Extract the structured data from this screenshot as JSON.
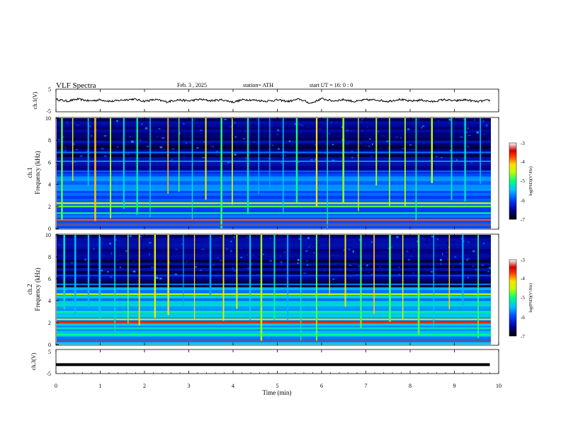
{
  "header": {
    "title": "VLF Spectra",
    "date": "Feb. 3 , 2025",
    "station": "station= ATH",
    "start": "start UT = 16: 0 : 0"
  },
  "colors": {
    "trace": "#000000",
    "frame": "#000000",
    "background": "#ffffff"
  },
  "chart_data": [
    {
      "type": "line",
      "name": "ch1-voltage",
      "ylabel": "ch.1(V)",
      "ylim": [
        -5,
        5
      ],
      "yticks": [
        "5",
        "-5"
      ],
      "x": [
        0,
        0.25,
        0.5,
        0.75,
        1,
        1.25,
        1.5,
        1.75,
        2,
        2.25,
        2.5,
        2.75,
        3,
        3.25,
        3.5,
        3.75,
        4,
        4.25,
        4.5,
        4.75,
        5,
        5.25,
        5.5,
        5.75,
        6,
        6.25,
        6.5,
        6.75,
        7,
        7.25,
        7.5,
        7.75,
        8,
        8.25,
        8.5,
        8.75,
        9,
        9.25,
        9.5,
        9.8
      ],
      "values": [
        0.5,
        -0.3,
        0.6,
        -0.2,
        0.3,
        -0.4,
        0.2,
        0.6,
        -0.3,
        0.4,
        -0.6,
        0.3,
        -0.2,
        0.5,
        -0.1,
        0.3,
        -0.7,
        0.4,
        0.1,
        -0.3,
        0.2,
        -0.4,
        0.6,
        -1.3,
        0.8,
        -0.2,
        0.4,
        -0.5,
        0.3,
        0.2,
        -0.4,
        0.5,
        -0.3,
        0.2,
        -0.6,
        0.4,
        -0.2,
        0.3,
        -0.5,
        0.1
      ]
    },
    {
      "type": "heatmap",
      "name": "ch1-spectrogram",
      "ylabel": "Frequency (kHz)",
      "channel": "ch.1",
      "ylim": [
        0,
        10
      ],
      "yticks": [
        "0",
        "2",
        "4",
        "6",
        "8",
        "10"
      ],
      "colorbar": {
        "label": "log(PSD)(V²/Hz)",
        "ticks": [
          "-3",
          "-4",
          "-5",
          "-6",
          "-7"
        ],
        "range": [
          -7,
          -3
        ]
      },
      "bands": [
        {
          "freq": 0.8,
          "level": -3.8
        },
        {
          "freq": 1.4,
          "level": -5.0
        },
        {
          "freq": 2.0,
          "level": -4.8
        },
        {
          "freq": 2.3,
          "level": -4.3
        },
        {
          "freq": 2.6,
          "level": -5.8
        },
        {
          "freq": 3.5,
          "level": -5.6
        },
        {
          "freq": 4.4,
          "level": -5.6
        },
        {
          "freq": 5.2,
          "level": -5.9
        },
        {
          "freq": 6.1,
          "level": -5.7
        },
        {
          "freq": 6.9,
          "level": -5.8
        }
      ],
      "impulses": [
        0.1,
        0.35,
        0.7,
        0.85,
        1.2,
        1.5,
        1.8,
        2.1,
        2.5,
        2.75,
        3.05,
        3.35,
        3.7,
        3.95,
        4.3,
        4.55,
        4.8,
        5.1,
        5.4,
        5.85,
        6.1,
        6.45,
        6.8,
        7.2,
        7.5,
        7.85,
        8.1,
        8.45,
        8.9,
        9.2,
        9.55
      ]
    },
    {
      "type": "heatmap",
      "name": "ch2-spectrogram",
      "ylabel": "Frequency (kHz)",
      "channel": "ch.2",
      "ylim": [
        0,
        10
      ],
      "yticks": [
        "0",
        "2",
        "4",
        "6",
        "8",
        "10"
      ],
      "colorbar": {
        "label": "log(PSD)(V²/Hz)",
        "ticks": [
          "-3",
          "-4",
          "-5",
          "-6",
          "-7"
        ],
        "range": [
          -7,
          -3
        ]
      },
      "bands": [
        {
          "freq": 0.9,
          "level": -5.0
        },
        {
          "freq": 1.5,
          "level": -5.2
        },
        {
          "freq": 2.0,
          "level": -3.6
        },
        {
          "freq": 2.3,
          "level": -4.4
        },
        {
          "freq": 3.0,
          "level": -5.0
        },
        {
          "freq": 3.6,
          "level": -5.2
        },
        {
          "freq": 4.6,
          "level": -4.5
        },
        {
          "freq": 5.5,
          "level": -5.8
        },
        {
          "freq": 6.3,
          "level": -6.0
        }
      ],
      "impulses": [
        0.15,
        0.4,
        0.7,
        0.95,
        1.3,
        1.6,
        1.85,
        2.2,
        2.5,
        2.85,
        3.1,
        3.45,
        3.75,
        4.05,
        4.35,
        4.6,
        4.9,
        5.2,
        5.5,
        5.85,
        6.15,
        6.5,
        6.85,
        7.15,
        7.5,
        7.8,
        8.15,
        8.5,
        8.85,
        9.15,
        9.5
      ]
    },
    {
      "type": "line",
      "name": "ch3-voltage",
      "ylabel": "ch.3(V)",
      "ylim": [
        -5,
        5
      ],
      "yticks": [
        "5",
        "-5"
      ],
      "x": [
        0,
        9.8
      ],
      "values": [
        -1.3,
        -1.3
      ]
    }
  ],
  "x_axis": {
    "label": "Time (min)",
    "range": [
      0,
      10
    ],
    "ticks": [
      "0",
      "1",
      "2",
      "3",
      "4",
      "5",
      "6",
      "7",
      "8",
      "9",
      "10"
    ]
  }
}
